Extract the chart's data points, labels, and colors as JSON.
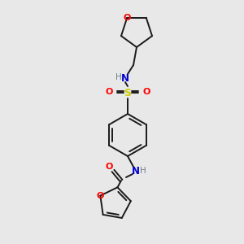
{
  "bg_color": "#e8e8e8",
  "bond_color": "#1a1a1a",
  "C": "#1a1a1a",
  "N": "#0000cd",
  "O": "#ff0000",
  "S": "#cccc00",
  "H_color": "#708090",
  "figsize": [
    3.0,
    3.0
  ],
  "dpi": 100,
  "lw": 1.4,
  "fs": 7.5
}
